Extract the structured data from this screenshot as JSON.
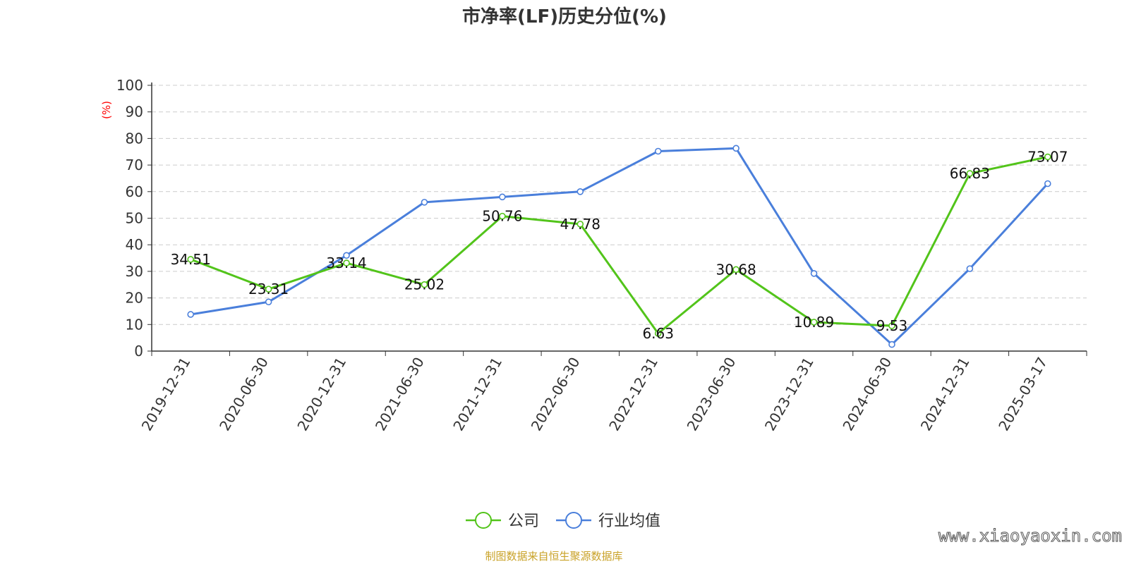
{
  "chart_data": {
    "type": "line",
    "title": "市净率(LF)历史分位(%)",
    "ylabel": "(%)",
    "ylim": [
      0,
      100
    ],
    "yticks": [
      "0",
      "10",
      "20",
      "30",
      "40",
      "50",
      "60",
      "70",
      "80",
      "90",
      "100"
    ],
    "grid": true,
    "legend_position": "bottom-center",
    "categories": [
      "2019-12-31",
      "2020-06-30",
      "2020-12-31",
      "2021-06-30",
      "2021-12-31",
      "2022-06-30",
      "2022-12-31",
      "2023-06-30",
      "2023-12-31",
      "2024-06-30",
      "2024-12-31",
      "2025-03-17"
    ],
    "series": [
      {
        "name": "公司",
        "color": "#52c41a",
        "values": [
          34.51,
          23.31,
          33.14,
          25.02,
          50.76,
          47.78,
          6.63,
          30.68,
          10.89,
          9.53,
          66.83,
          73.07
        ],
        "labels": [
          "34.51",
          "23.31",
          "33.14",
          "25.02",
          "50.76",
          "47.78",
          "6.63",
          "30.68",
          "10.89",
          "9.53",
          "66.83",
          "73.07"
        ]
      },
      {
        "name": "行业均值",
        "color": "#4a7fdb",
        "values": [
          13.8,
          18.5,
          36.0,
          56.0,
          58.0,
          60.0,
          75.2,
          76.3,
          29.2,
          2.5,
          31.0,
          63.0
        ]
      }
    ]
  },
  "footer": {
    "source": "制图数据来自恒生聚源数据库",
    "watermark": "www.xiaoyaoxin.com"
  }
}
